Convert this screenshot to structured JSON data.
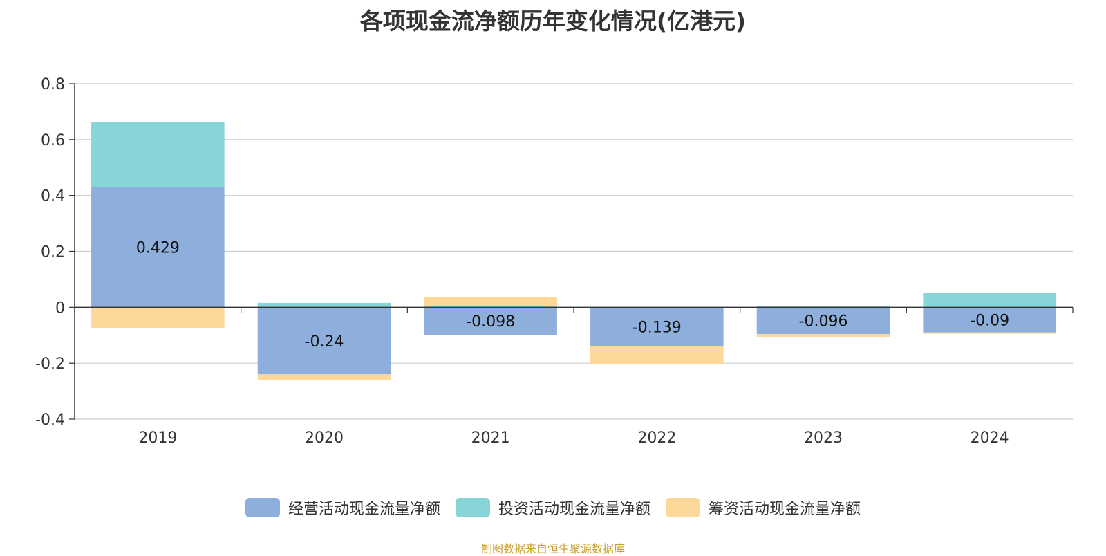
{
  "chart_data": {
    "type": "bar",
    "stacked": true,
    "title": "各项现金流净额历年变化情况(亿港元)",
    "categories": [
      "2019",
      "2020",
      "2021",
      "2022",
      "2023",
      "2024"
    ],
    "ylim": [
      -0.4,
      0.8
    ],
    "yticks": [
      0.8,
      0.6,
      0.4,
      0.2,
      0,
      -0.2,
      -0.4
    ],
    "ytick_labels": [
      "0.8",
      "0.6",
      "0.4",
      "0.2",
      "0",
      "-0.2",
      "-0.4"
    ],
    "grid": true,
    "legend_position": "bottom-center",
    "series": [
      {
        "name": "经营活动现金流量净额",
        "color": "#8eaedb",
        "values": [
          0.429,
          -0.24,
          -0.098,
          -0.139,
          -0.096,
          -0.09
        ],
        "labels": [
          "0.429",
          "-0.24",
          "-0.098",
          "-0.139",
          "-0.096",
          "-0.09"
        ]
      },
      {
        "name": "投资活动现金流量净额",
        "color": "#88d5d8",
        "values": [
          0.233,
          0.016,
          0.004,
          0.002,
          0.004,
          0.052
        ]
      },
      {
        "name": "筹资活动现金流量净额",
        "color": "#fed899",
        "values": [
          -0.075,
          -0.02,
          0.032,
          -0.063,
          -0.01,
          -0.005
        ]
      }
    ]
  },
  "source_note": "制图数据来自恒生聚源数据库"
}
